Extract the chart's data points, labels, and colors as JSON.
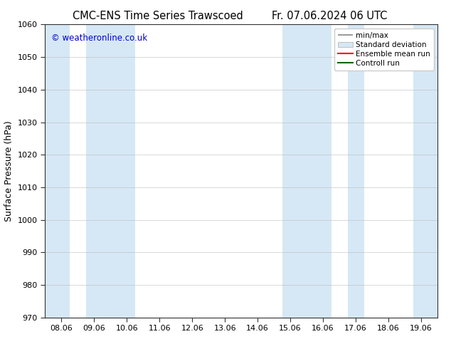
{
  "title": "CMC-ENS Time Series Trawscoed",
  "title2": "Fr. 07.06.2024 06 UTC",
  "ylabel": "Surface Pressure (hPa)",
  "ylim": [
    970,
    1060
  ],
  "yticks": [
    970,
    980,
    990,
    1000,
    1010,
    1020,
    1030,
    1040,
    1050,
    1060
  ],
  "xtick_labels": [
    "08.06",
    "09.06",
    "10.06",
    "11.06",
    "12.06",
    "13.06",
    "14.06",
    "15.06",
    "16.06",
    "17.06",
    "18.06",
    "19.06"
  ],
  "xtick_positions": [
    0,
    1,
    2,
    3,
    4,
    5,
    6,
    7,
    8,
    9,
    10,
    11
  ],
  "xlim": [
    -0.5,
    11.5
  ],
  "shaded_bands": [
    {
      "x_start": -0.5,
      "x_end": 0.25,
      "color": "#d6e8f5"
    },
    {
      "x_start": 0.75,
      "x_end": 2.25,
      "color": "#d6e8f5"
    },
    {
      "x_start": 6.75,
      "x_end": 8.25,
      "color": "#d6e8f5"
    },
    {
      "x_start": 8.75,
      "x_end": 9.25,
      "color": "#d6e8f5"
    },
    {
      "x_start": 10.75,
      "x_end": 11.5,
      "color": "#d6e8f5"
    }
  ],
  "watermark": "© weatheronline.co.uk",
  "watermark_color": "#0000cc",
  "background_color": "#ffffff",
  "fig_width": 6.34,
  "fig_height": 4.9,
  "dpi": 100
}
